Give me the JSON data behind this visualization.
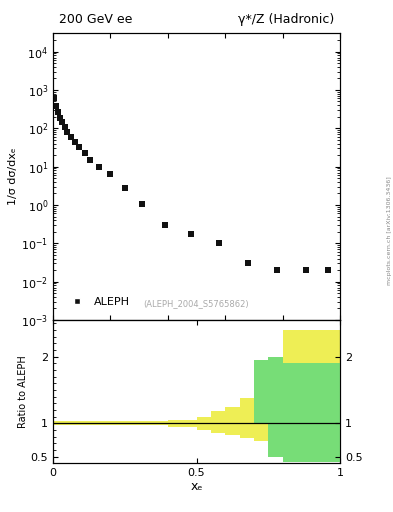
{
  "title_left": "200 GeV ee",
  "title_right": "γ*/Z (Hadronic)",
  "ylabel_main": "1/σ dσ/dxₑ",
  "ylabel_ratio": "Ratio to ALEPH",
  "xlabel": "xₑ",
  "watermark": "(ALEPH_2004_S5765862)",
  "side_label": "mcplots.cern.ch [arXiv:1306.3436]",
  "legend_label": "ALEPH",
  "data_x": [
    0.005,
    0.012,
    0.018,
    0.025,
    0.032,
    0.04,
    0.05,
    0.062,
    0.075,
    0.09,
    0.11,
    0.13,
    0.16,
    0.2,
    0.25,
    0.31,
    0.39,
    0.48,
    0.58,
    0.68,
    0.78,
    0.88,
    0.96
  ],
  "data_y": [
    600,
    380,
    260,
    190,
    145,
    110,
    82,
    60,
    44,
    32,
    22,
    15,
    9.5,
    6.5,
    2.8,
    1.05,
    0.3,
    0.17,
    0.1,
    0.03,
    0.02,
    0.02,
    0.02
  ],
  "ylim_main": [
    0.001,
    30000
  ],
  "xlim_main": [
    0.0,
    1.0
  ],
  "ylim_ratio": [
    0.4,
    2.55
  ],
  "ratio_bins_x": [
    0.0,
    0.05,
    0.1,
    0.15,
    0.2,
    0.25,
    0.3,
    0.35,
    0.4,
    0.45,
    0.5,
    0.55,
    0.6,
    0.65,
    0.7,
    0.75,
    0.8,
    0.85,
    0.9,
    0.95,
    1.0
  ],
  "ratio_yellow_lo": [
    0.97,
    0.97,
    0.97,
    0.97,
    0.97,
    0.97,
    0.97,
    0.97,
    0.95,
    0.95,
    0.9,
    0.85,
    0.82,
    0.78,
    0.73,
    0.62,
    0.42,
    0.42,
    0.42,
    0.42,
    0.42
  ],
  "ratio_yellow_hi": [
    1.03,
    1.03,
    1.03,
    1.03,
    1.03,
    1.03,
    1.03,
    1.03,
    1.05,
    1.05,
    1.1,
    1.18,
    1.25,
    1.38,
    1.48,
    1.6,
    2.4,
    2.4,
    2.4,
    2.4,
    2.4
  ],
  "ratio_green_lo": [
    1.0,
    1.0,
    1.0,
    1.0,
    1.0,
    1.0,
    1.0,
    1.0,
    1.0,
    1.0,
    1.0,
    1.0,
    1.0,
    1.0,
    1.0,
    0.5,
    0.42,
    0.42,
    0.42,
    0.42,
    0.42
  ],
  "ratio_green_hi": [
    1.0,
    1.0,
    1.0,
    1.0,
    1.0,
    1.0,
    1.0,
    1.0,
    1.0,
    1.0,
    1.0,
    1.0,
    1.0,
    1.0,
    1.95,
    2.0,
    1.9,
    1.9,
    1.9,
    1.9,
    1.9
  ],
  "marker_color": "#111111",
  "marker_size": 5,
  "green_color": "#77dd77",
  "yellow_color": "#eeee55",
  "background_color": "#ffffff"
}
